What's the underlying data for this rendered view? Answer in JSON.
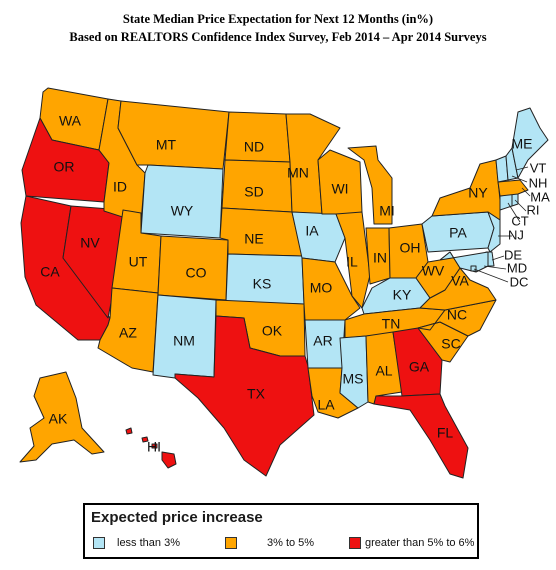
{
  "title_line1": "State Median Price Expectation for Next 12 Months (in%)",
  "title_line2": "Based on REALTORS Confidence Index Survey, Feb 2014 – Apr 2014 Surveys",
  "colors": {
    "low": "#b3e5f5",
    "mid": "#ffa500",
    "high": "#ee1111"
  },
  "legend": {
    "title": "Expected price increase",
    "items": [
      {
        "label": "less than 3%",
        "category": "low"
      },
      {
        "label": "3% to 5%",
        "category": "mid"
      },
      {
        "label": "greater than 5% to 6%",
        "category": "high"
      }
    ]
  },
  "states": [
    {
      "abbr": "WA",
      "category": "mid"
    },
    {
      "abbr": "OR",
      "category": "high"
    },
    {
      "abbr": "CA",
      "category": "high"
    },
    {
      "abbr": "NV",
      "category": "high"
    },
    {
      "abbr": "ID",
      "category": "mid"
    },
    {
      "abbr": "MT",
      "category": "mid"
    },
    {
      "abbr": "WY",
      "category": "low"
    },
    {
      "abbr": "UT",
      "category": "mid"
    },
    {
      "abbr": "AZ",
      "category": "mid"
    },
    {
      "abbr": "CO",
      "category": "mid"
    },
    {
      "abbr": "NM",
      "category": "low"
    },
    {
      "abbr": "ND",
      "category": "mid"
    },
    {
      "abbr": "SD",
      "category": "mid"
    },
    {
      "abbr": "NE",
      "category": "mid"
    },
    {
      "abbr": "KS",
      "category": "low"
    },
    {
      "abbr": "OK",
      "category": "mid"
    },
    {
      "abbr": "TX",
      "category": "high"
    },
    {
      "abbr": "MN",
      "category": "mid"
    },
    {
      "abbr": "IA",
      "category": "low"
    },
    {
      "abbr": "MO",
      "category": "mid"
    },
    {
      "abbr": "AR",
      "category": "low"
    },
    {
      "abbr": "LA",
      "category": "mid"
    },
    {
      "abbr": "WI",
      "category": "mid"
    },
    {
      "abbr": "IL",
      "category": "mid"
    },
    {
      "abbr": "MI",
      "category": "mid"
    },
    {
      "abbr": "IN",
      "category": "mid"
    },
    {
      "abbr": "OH",
      "category": "mid"
    },
    {
      "abbr": "KY",
      "category": "low"
    },
    {
      "abbr": "TN",
      "category": "mid"
    },
    {
      "abbr": "MS",
      "category": "low"
    },
    {
      "abbr": "AL",
      "category": "mid"
    },
    {
      "abbr": "GA",
      "category": "high"
    },
    {
      "abbr": "FL",
      "category": "high"
    },
    {
      "abbr": "SC",
      "category": "mid"
    },
    {
      "abbr": "NC",
      "category": "mid"
    },
    {
      "abbr": "VA",
      "category": "mid"
    },
    {
      "abbr": "WV",
      "category": "mid"
    },
    {
      "abbr": "PA",
      "category": "low"
    },
    {
      "abbr": "NY",
      "category": "mid"
    },
    {
      "abbr": "ME",
      "category": "low"
    },
    {
      "abbr": "VT",
      "category": "low"
    },
    {
      "abbr": "NH",
      "category": "low"
    },
    {
      "abbr": "MA",
      "category": "mid"
    },
    {
      "abbr": "RI",
      "category": "low"
    },
    {
      "abbr": "CT",
      "category": "low"
    },
    {
      "abbr": "NJ",
      "category": "low"
    },
    {
      "abbr": "DE",
      "category": "low"
    },
    {
      "abbr": "MD",
      "category": "low"
    },
    {
      "abbr": "DC",
      "category": "low"
    },
    {
      "abbr": "AK",
      "category": "mid"
    },
    {
      "abbr": "HI",
      "category": "high"
    }
  ]
}
